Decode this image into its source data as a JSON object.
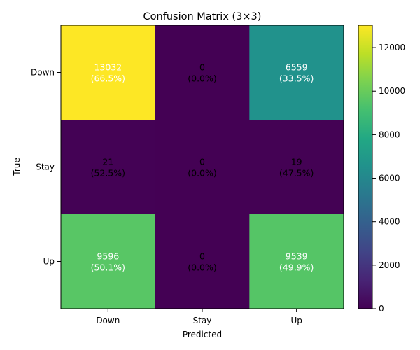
{
  "chart_data": {
    "type": "heatmap",
    "title": "Confusion Matrix (3×3)",
    "xlabel": "Predicted",
    "ylabel": "True",
    "x_categories": [
      "Down",
      "Stay",
      "Up"
    ],
    "y_categories": [
      "Down",
      "Stay",
      "Up"
    ],
    "values": [
      [
        13032,
        0,
        6559
      ],
      [
        21,
        0,
        19
      ],
      [
        9596,
        0,
        9539
      ]
    ],
    "cell_labels": [
      [
        "13032\n(66.5%)",
        "0\n(0.0%)",
        "6559\n(33.5%)"
      ],
      [
        "21\n(52.5%)",
        "0\n(0.0%)",
        "19\n(47.5%)"
      ],
      [
        "9596\n(50.1%)",
        "0\n(0.0%)",
        "9539\n(49.9%)"
      ]
    ],
    "colormap": "viridis",
    "colorbar": {
      "min": 0,
      "max": 13032,
      "ticks": [
        0,
        2000,
        4000,
        6000,
        8000,
        10000,
        12000
      ],
      "tick_labels": [
        "0",
        "2000",
        "4000",
        "6000",
        "8000",
        "10000",
        "12000"
      ]
    }
  }
}
